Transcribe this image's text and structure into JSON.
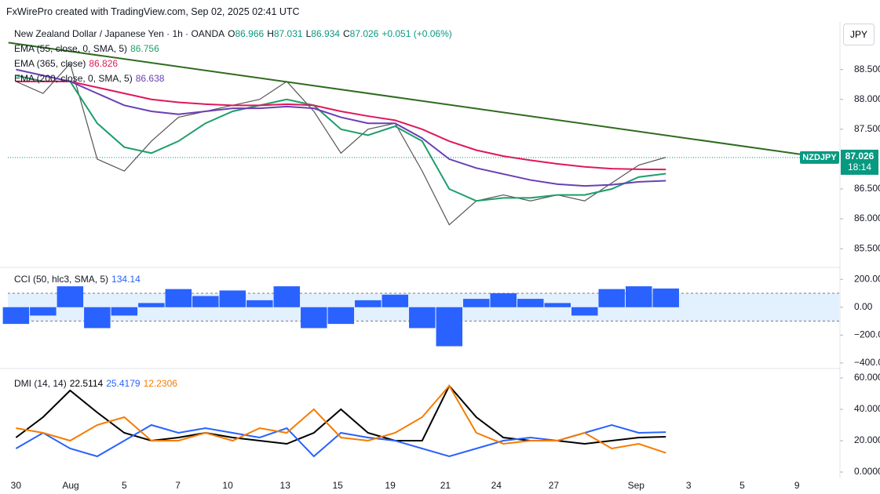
{
  "header": {
    "credit": "FxWirePro created with TradingView.com, Sep 02, 2025 02:41 UTC",
    "currency": "JPY"
  },
  "chart_data": [
    {
      "type": "line",
      "title": "New Zealand Dollar / Japanese Yen · 1h · OANDA",
      "ohlc": [
        {
          "label": "O",
          "value": "86.966"
        },
        {
          "label": "H",
          "value": "87.031"
        },
        {
          "label": "L",
          "value": "86.934"
        },
        {
          "label": "C",
          "value": "87.026"
        }
      ],
      "change": "+0.051 (+0.06%)",
      "xlim": [
        -0.15,
        15.2
      ],
      "x": [
        0,
        0.5,
        1,
        1.5,
        2,
        2.5,
        3,
        3.5,
        4,
        4.5,
        5,
        5.5,
        6,
        6.5,
        7,
        7.5,
        8,
        8.5,
        9,
        9.5,
        10,
        10.5,
        11,
        11.5,
        12
      ],
      "ylim": [
        85.2,
        89.27
      ],
      "yticks": [
        {
          "value": 85.5,
          "label": "85.500"
        },
        {
          "value": 86,
          "label": "86.000"
        },
        {
          "value": 86.5,
          "label": "86.500"
        },
        {
          "value": 87.5,
          "label": "87.500"
        },
        {
          "value": 88,
          "label": "88.000"
        },
        {
          "value": 88.5,
          "label": "88.500"
        }
      ],
      "series": [
        {
          "color": "#555555",
          "values": [
            88.3,
            88.1,
            88.6,
            87.0,
            86.8,
            87.3,
            87.7,
            87.8,
            87.9,
            88.0,
            88.3,
            87.8,
            87.1,
            87.5,
            87.6,
            86.8,
            85.9,
            86.3,
            86.4,
            86.3,
            86.4,
            86.3,
            86.6,
            86.9,
            87.03
          ]
        },
        {
          "name": "EMA (55, close, 0, SMA, 5)",
          "value_label": "86.756",
          "color": "#1e9e6a",
          "values": [
            88.4,
            88.3,
            88.3,
            87.6,
            87.2,
            87.1,
            87.3,
            87.6,
            87.8,
            87.9,
            88.0,
            87.9,
            87.5,
            87.4,
            87.55,
            87.3,
            86.5,
            86.3,
            86.35,
            86.35,
            86.4,
            86.4,
            86.5,
            86.7,
            86.756
          ]
        },
        {
          "name": "EMA (365, close)",
          "value_label": "86.826",
          "color": "#e0185a",
          "values": [
            88.3,
            88.3,
            88.3,
            88.2,
            88.1,
            88.0,
            87.95,
            87.92,
            87.9,
            87.9,
            87.92,
            87.9,
            87.8,
            87.72,
            87.65,
            87.5,
            87.3,
            87.15,
            87.05,
            86.98,
            86.92,
            86.87,
            86.84,
            86.83,
            86.826
          ]
        },
        {
          "name": "EMA (200, close, 0, SMA, 5)",
          "value_label": "86.638",
          "color": "#6a3fb5",
          "values": [
            88.5,
            88.4,
            88.3,
            88.1,
            87.9,
            87.8,
            87.75,
            87.8,
            87.85,
            87.85,
            87.88,
            87.85,
            87.7,
            87.6,
            87.6,
            87.35,
            87.0,
            86.85,
            86.75,
            86.65,
            86.58,
            86.55,
            86.57,
            86.62,
            86.638
          ]
        }
      ],
      "trendline": {
        "color": "#2e6b1f",
        "x": [
          -0.14,
          14.49
        ],
        "values": [
          88.95,
          87.08
        ]
      },
      "price_tag": {
        "symbol": "NZDJPY",
        "last": 87.026,
        "countdown": "18:14",
        "color": "#089981"
      }
    },
    {
      "type": "bar",
      "name": "CCI (50, hlc3, SMA, 5)",
      "value_label": "134.14",
      "color": "#2962ff",
      "xlim": [
        -0.15,
        15.2
      ],
      "x": [
        0,
        0.5,
        1,
        1.5,
        2,
        2.5,
        3,
        3.5,
        4,
        4.5,
        5,
        5.5,
        6,
        6.5,
        7,
        7.5,
        8,
        8.5,
        9,
        9.5,
        10,
        10.5,
        11,
        11.5,
        12
      ],
      "values": [
        -120,
        -60,
        150,
        -150,
        -60,
        30,
        130,
        80,
        120,
        50,
        150,
        -150,
        -120,
        50,
        90,
        -150,
        -280,
        60,
        100,
        60,
        30,
        -60,
        130,
        150,
        134.14
      ],
      "band": [
        -100,
        100
      ],
      "ylim": [
        -440,
        280
      ],
      "yticks": [
        {
          "value": -400,
          "label": "−400.00"
        },
        {
          "value": -200,
          "label": "−200.00"
        },
        {
          "value": 0,
          "label": "0.00"
        },
        {
          "value": 200,
          "label": "200.00"
        }
      ]
    },
    {
      "type": "line",
      "name": "DMI (14, 14)",
      "xlim": [
        -0.15,
        15.2
      ],
      "x": [
        0,
        0.5,
        1,
        1.5,
        2,
        2.5,
        3,
        3.5,
        4,
        4.5,
        5,
        5.5,
        6,
        6.5,
        7,
        7.5,
        8,
        8.5,
        9,
        9.5,
        10,
        10.5,
        11,
        11.5,
        12
      ],
      "ylim": [
        -4,
        66
      ],
      "yticks": [
        {
          "value": 0,
          "label": "0.0000"
        },
        {
          "value": 20,
          "label": "20.0000"
        },
        {
          "value": 40,
          "label": "40.0000"
        },
        {
          "value": 60,
          "label": "60.0000"
        }
      ],
      "series": [
        {
          "value_label": "22.5114",
          "color": "#000000",
          "values": [
            22,
            35,
            52,
            38,
            25,
            20,
            22,
            25,
            22,
            20,
            18,
            25,
            40,
            25,
            20,
            20,
            55,
            35,
            22,
            20,
            20,
            18,
            20,
            22,
            22.51
          ]
        },
        {
          "value_label": "25.4179",
          "color": "#2962ff",
          "values": [
            15,
            25,
            15,
            10,
            20,
            30,
            25,
            28,
            25,
            22,
            28,
            10,
            25,
            22,
            20,
            15,
            10,
            15,
            20,
            22,
            20,
            25,
            30,
            25,
            25.42
          ]
        },
        {
          "value_label": "12.2306",
          "color": "#f57c00",
          "values": [
            28,
            25,
            20,
            30,
            35,
            20,
            20,
            25,
            20,
            28,
            25,
            40,
            22,
            20,
            25,
            35,
            55,
            25,
            18,
            20,
            20,
            25,
            15,
            18,
            12.23
          ]
        }
      ],
      "xticks": [
        {
          "value": 0,
          "label": "30"
        },
        {
          "value": 1.01,
          "label": "Aug"
        },
        {
          "value": 2.0,
          "label": "5"
        },
        {
          "value": 2.99,
          "label": "7"
        },
        {
          "value": 3.91,
          "label": "10"
        },
        {
          "value": 4.97,
          "label": "13"
        },
        {
          "value": 5.94,
          "label": "15"
        },
        {
          "value": 6.91,
          "label": "19"
        },
        {
          "value": 7.93,
          "label": "21"
        },
        {
          "value": 8.87,
          "label": "24"
        },
        {
          "value": 9.93,
          "label": "27"
        },
        {
          "value": 11.45,
          "label": "Sep"
        },
        {
          "value": 12.42,
          "label": "3"
        },
        {
          "value": 13.41,
          "label": "5"
        },
        {
          "value": 14.42,
          "label": "9"
        }
      ]
    }
  ]
}
